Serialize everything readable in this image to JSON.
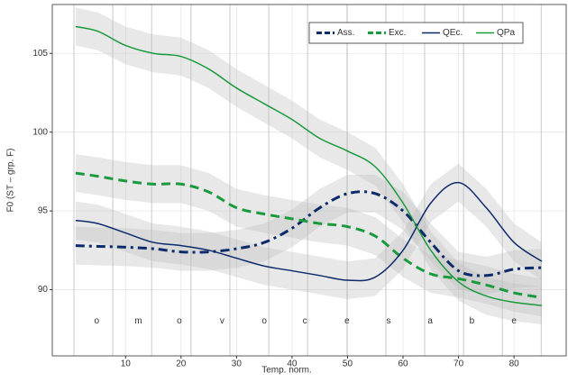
{
  "chart_data": {
    "type": "line",
    "x_label": "Temp. norm.",
    "y_label": "F0 (ST – grp. F)",
    "xlim": [
      -3.2,
      89.4
    ],
    "ylim": [
      85.8,
      108.1
    ],
    "xticks": [
      10,
      20,
      30,
      40,
      50,
      60,
      70,
      80
    ],
    "yticks": [
      90,
      95,
      100,
      105
    ],
    "grid": true,
    "legend": "top-right",
    "ribbon": 1.2,
    "x": [
      1,
      5,
      10,
      15,
      20,
      25,
      30,
      35,
      40,
      45,
      50,
      55,
      60,
      65,
      70,
      75,
      80,
      85
    ],
    "series": [
      {
        "name": "Ass.",
        "color": "#0d2a6b",
        "dash": "dashdot",
        "width": 3,
        "values": [
          92.8,
          92.75,
          92.7,
          92.6,
          92.4,
          92.4,
          92.6,
          93.0,
          93.9,
          95.2,
          96.1,
          96.1,
          95.0,
          93.0,
          91.2,
          90.9,
          91.3,
          91.4
        ]
      },
      {
        "name": "Exc.",
        "color": "#1a9a3c",
        "dash": "dashed",
        "width": 3,
        "values": [
          97.4,
          97.2,
          96.9,
          96.7,
          96.7,
          96.2,
          95.2,
          94.8,
          94.5,
          94.2,
          94.0,
          93.4,
          92.0,
          91.0,
          90.7,
          90.3,
          89.8,
          89.5
        ]
      },
      {
        "name": "QEc.",
        "color": "#0d2a6b",
        "dash": "solid",
        "width": 1.5,
        "values": [
          94.4,
          94.2,
          93.6,
          93.0,
          92.8,
          92.5,
          92.0,
          91.5,
          91.2,
          90.9,
          90.6,
          90.8,
          92.5,
          95.5,
          96.8,
          95.2,
          93.0,
          91.8
        ]
      },
      {
        "name": "QPa",
        "color": "#1a9a3c",
        "dash": "solid",
        "width": 1.5,
        "values": [
          106.7,
          106.4,
          105.5,
          105.0,
          104.8,
          104.0,
          102.8,
          101.8,
          100.8,
          99.6,
          98.8,
          97.8,
          95.5,
          92.5,
          90.5,
          89.6,
          89.2,
          89.0
        ]
      }
    ],
    "segment_boundaries": [
      0.7,
      7.7,
      14.7,
      21.8,
      28.8,
      35.8,
      42.8,
      49.9,
      56.9,
      63.9,
      70.9,
      77.9,
      84.9
    ],
    "annotations": [
      {
        "text": "o",
        "x": 4.8,
        "y": 88
      },
      {
        "text": "m",
        "x": 12.3,
        "y": 88
      },
      {
        "text": "o",
        "x": 19.7,
        "y": 88
      },
      {
        "text": "v",
        "x": 27.4,
        "y": 88
      },
      {
        "text": "o",
        "x": 35,
        "y": 88
      },
      {
        "text": "c",
        "x": 42.3,
        "y": 88
      },
      {
        "text": "e",
        "x": 49.9,
        "y": 88
      },
      {
        "text": "s",
        "x": 57.4,
        "y": 88
      },
      {
        "text": "a",
        "x": 64.9,
        "y": 88
      },
      {
        "text": "b",
        "x": 72.4,
        "y": 88
      },
      {
        "text": "e",
        "x": 80,
        "y": 88
      }
    ]
  }
}
